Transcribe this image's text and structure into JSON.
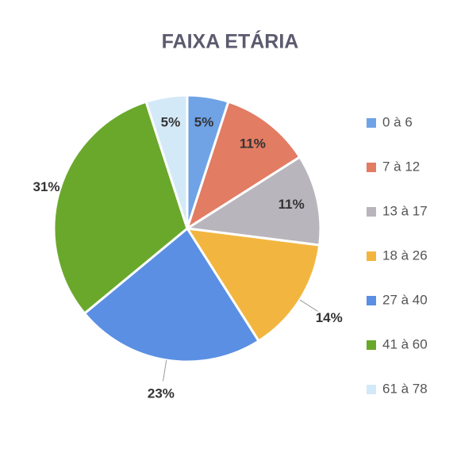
{
  "chart_data": {
    "type": "pie",
    "title": "FAIXA ETÁRIA",
    "categories": [
      "0 à 6",
      "7 à 12",
      "13 à 17",
      "18 à 26",
      "27 à 40",
      "41 à 60",
      "61 à 78"
    ],
    "values": [
      5,
      11,
      11,
      14,
      23,
      31,
      5
    ],
    "value_labels": [
      "5%",
      "11%",
      "11%",
      "14%",
      "23%",
      "31%",
      "5%"
    ],
    "colors": [
      "#6fa3e6",
      "#e27c63",
      "#b9b5bd",
      "#f2b640",
      "#5a8fe3",
      "#6aa82c",
      "#d3e9f7"
    ],
    "legend": "right"
  }
}
